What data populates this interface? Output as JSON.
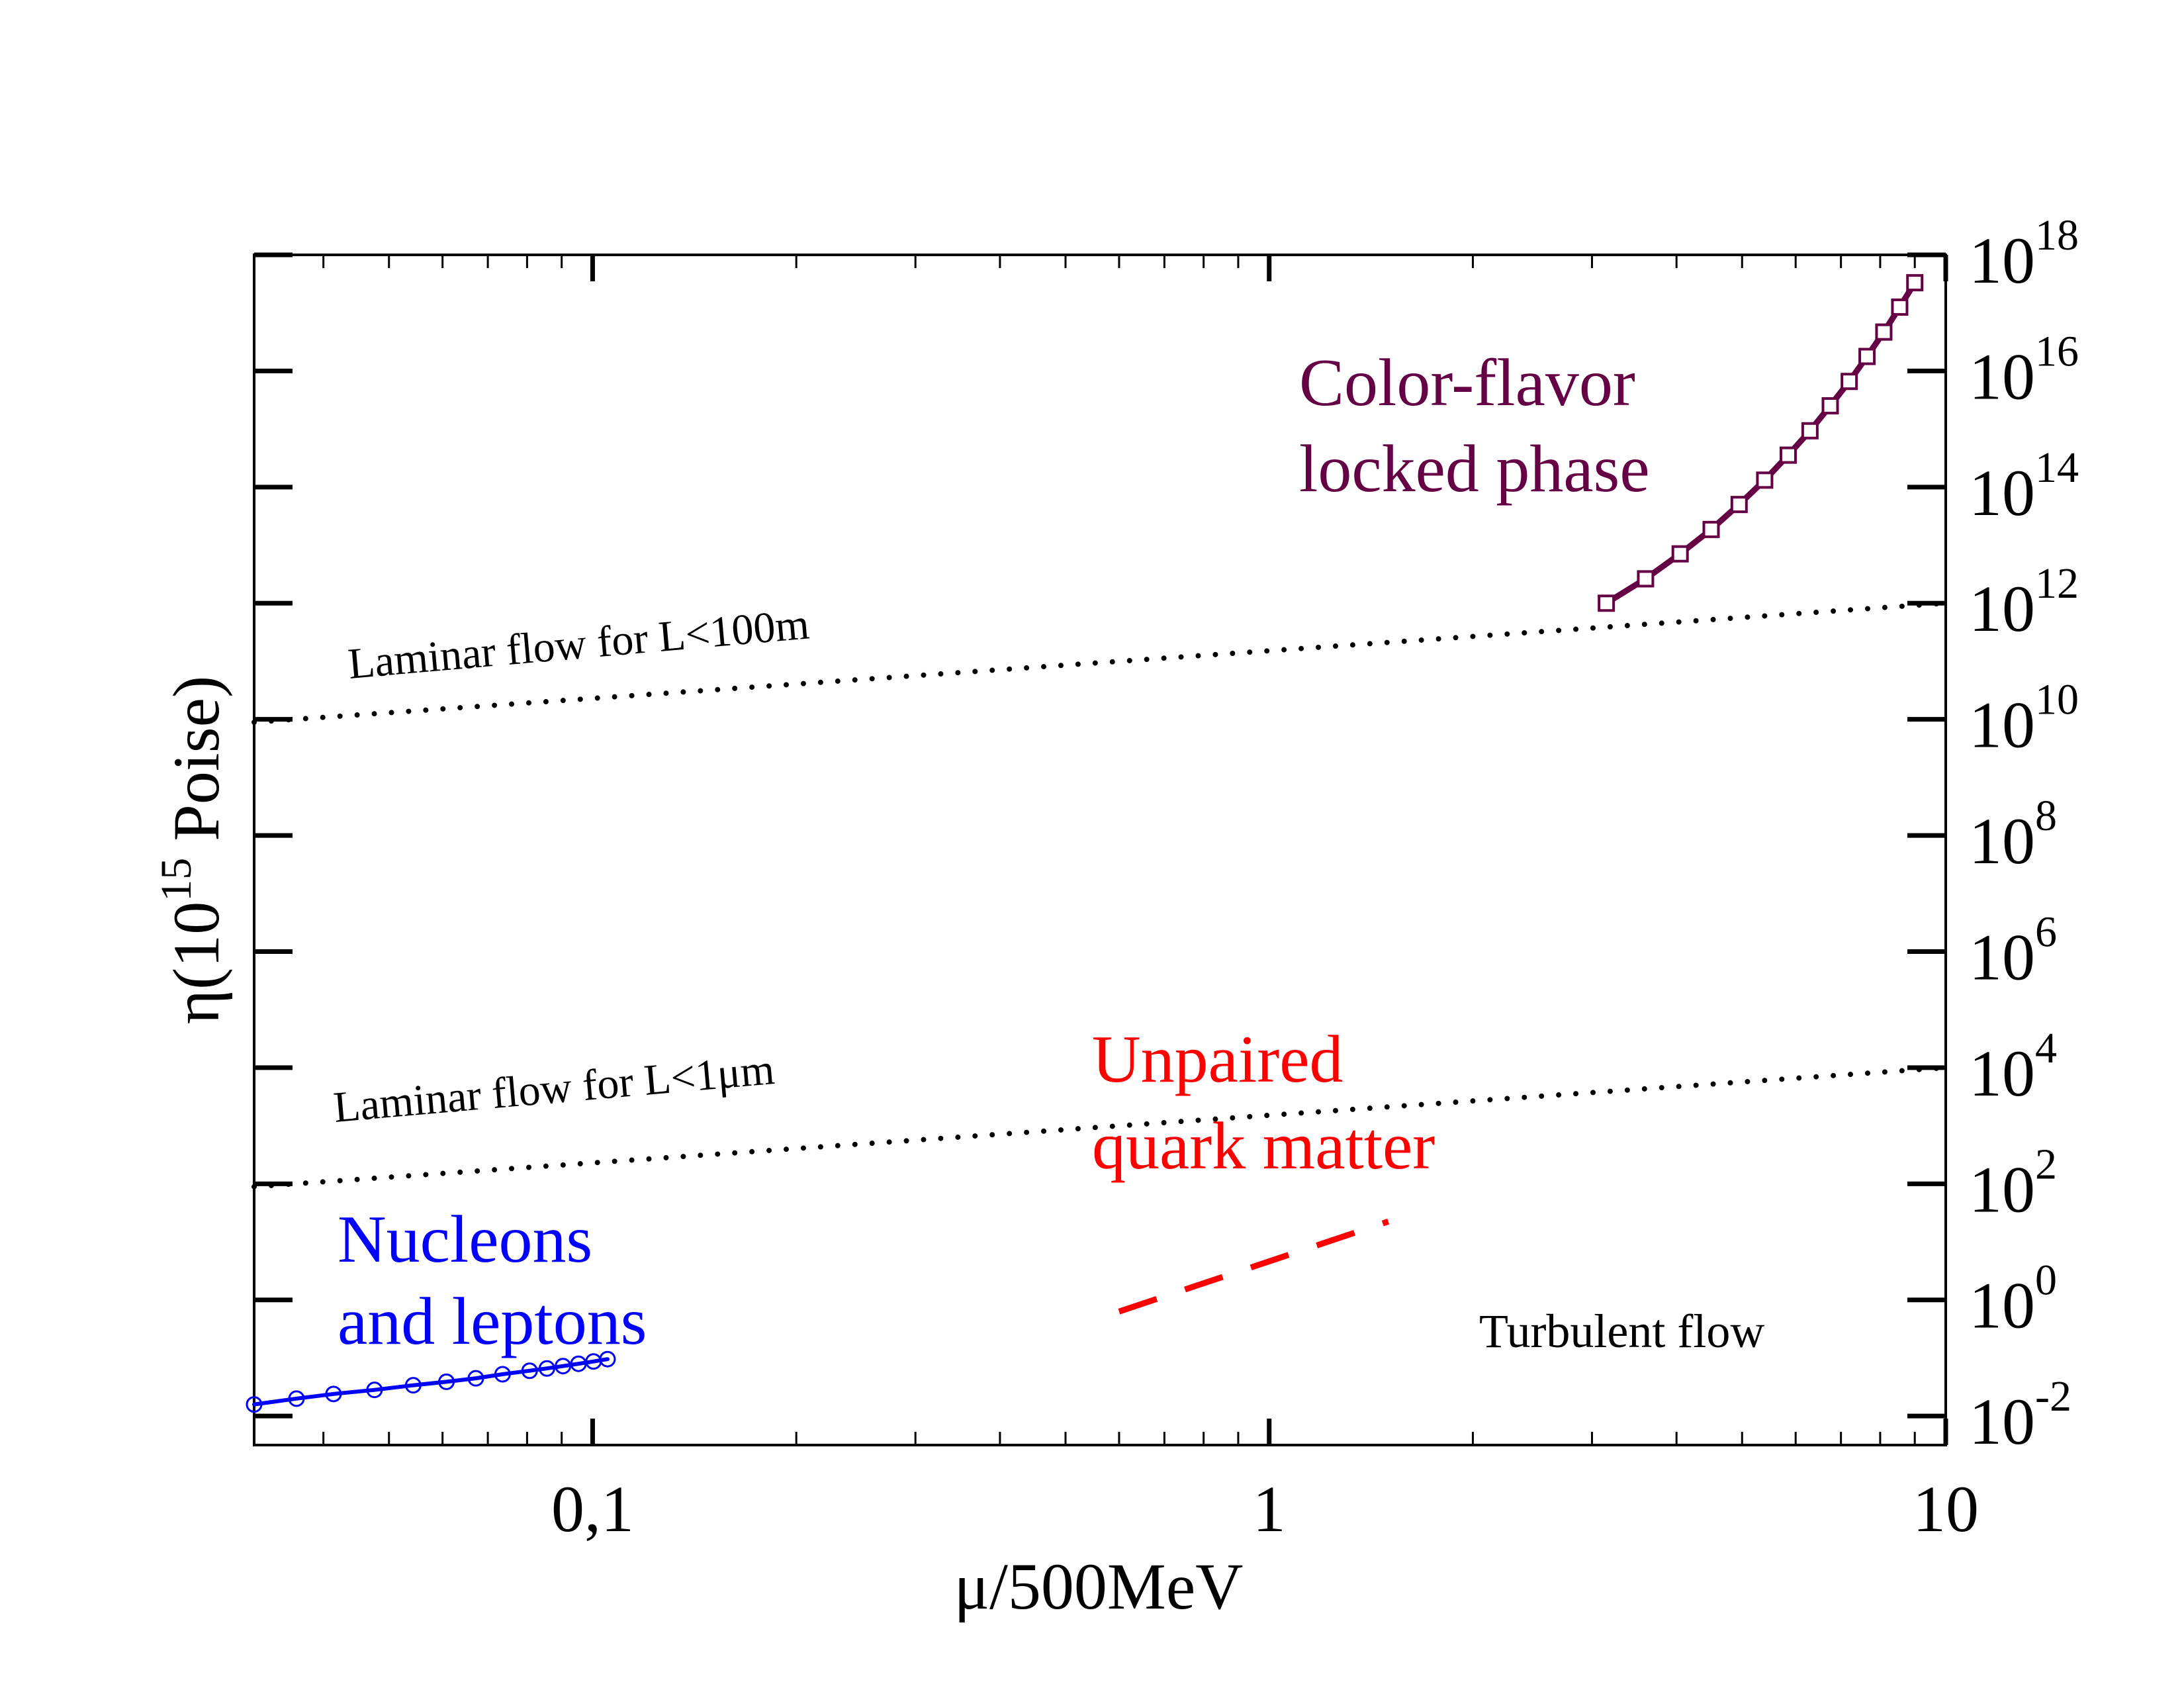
{
  "chart_data": {
    "type": "line",
    "title": "",
    "xlabel": "μ/500MeV",
    "ylabel_prefix": "η(10",
    "ylabel_exponent": "15",
    "ylabel_suffix": " Poise)",
    "xscale": "log",
    "yscale": "log",
    "xlim": [
      0.0316,
      10
    ],
    "ylim": [
      -2.5,
      18
    ],
    "x_ticks": [
      {
        "value": 0.1,
        "label": "0,1"
      },
      {
        "value": 1,
        "label": "1"
      },
      {
        "value": 10,
        "label": "10"
      }
    ],
    "y_ticks": [
      {
        "exp": -2,
        "base": "10",
        "label": "-2"
      },
      {
        "exp": 0,
        "base": "10",
        "label": "0"
      },
      {
        "exp": 2,
        "base": "10",
        "label": "2"
      },
      {
        "exp": 4,
        "base": "10",
        "label": "4"
      },
      {
        "exp": 6,
        "base": "10",
        "label": "6"
      },
      {
        "exp": 8,
        "base": "10",
        "label": "8"
      },
      {
        "exp": 10,
        "base": "10",
        "label": "10"
      },
      {
        "exp": 12,
        "base": "10",
        "label": "12"
      },
      {
        "exp": 14,
        "base": "10",
        "label": "14"
      },
      {
        "exp": 16,
        "base": "10",
        "label": "16"
      },
      {
        "exp": 18,
        "base": "10",
        "label": "18"
      }
    ],
    "y_axis_side": "right",
    "series": [
      {
        "name": "Nucleons and leptons",
        "style": "solid-circle-markers",
        "color": "#0000ff",
        "x": [
          0.0316,
          0.0365,
          0.0414,
          0.0476,
          0.0543,
          0.0608,
          0.0672,
          0.0736,
          0.0807,
          0.0856,
          0.0904,
          0.0953,
          0.1003,
          0.1052
        ],
        "log10_y": [
          -1.8,
          -1.7,
          -1.62,
          -1.55,
          -1.47,
          -1.41,
          -1.35,
          -1.28,
          -1.22,
          -1.18,
          -1.14,
          -1.1,
          -1.06,
          -1.02
        ]
      },
      {
        "name": "Unpaired quark matter",
        "style": "dashed",
        "color": "#ff0000",
        "x": [
          0.6,
          1.5
        ],
        "log10_y": [
          -0.2,
          1.35
        ]
      },
      {
        "name": "Color-flavor locked phase",
        "style": "solid-square-markers",
        "color": "#660044",
        "x": [
          3.15,
          3.6,
          4.05,
          4.5,
          4.95,
          5.4,
          5.85,
          6.3,
          6.75,
          7.2,
          7.65,
          8.1,
          8.55,
          9.0
        ],
        "log10_y": [
          12.0,
          12.42,
          12.85,
          13.27,
          13.7,
          14.12,
          14.55,
          14.97,
          15.4,
          15.82,
          16.25,
          16.67,
          17.1,
          17.52
        ]
      },
      {
        "name": "Laminar flow for L<100m",
        "style": "dotted",
        "color": "#000000",
        "x": [
          0.0316,
          10
        ],
        "log10_y": [
          9.95,
          12.0
        ]
      },
      {
        "name": "Laminar flow for L<1μm",
        "style": "dotted",
        "color": "#000000",
        "x": [
          0.0316,
          10
        ],
        "log10_y": [
          1.95,
          4.0
        ]
      }
    ],
    "annotations": [
      {
        "id": "laminar100",
        "text": "Laminar flow for L<100m",
        "color": "#000000"
      },
      {
        "id": "laminar1um",
        "text": "Laminar flow for L<1μm",
        "color": "#000000"
      },
      {
        "id": "cfl1",
        "text": "Color-flavor",
        "color": "#660044"
      },
      {
        "id": "cfl2",
        "text": "locked phase",
        "color": "#660044"
      },
      {
        "id": "unp1",
        "text": "Unpaired",
        "color": "#ff0000"
      },
      {
        "id": "unp2",
        "text": "quark matter",
        "color": "#ff0000"
      },
      {
        "id": "nuc1",
        "text": "Nucleons",
        "color": "#0000ff"
      },
      {
        "id": "nuc2",
        "text": "and leptons",
        "color": "#0000ff"
      },
      {
        "id": "turb",
        "text": "Turbulent flow",
        "color": "#000000"
      }
    ]
  }
}
